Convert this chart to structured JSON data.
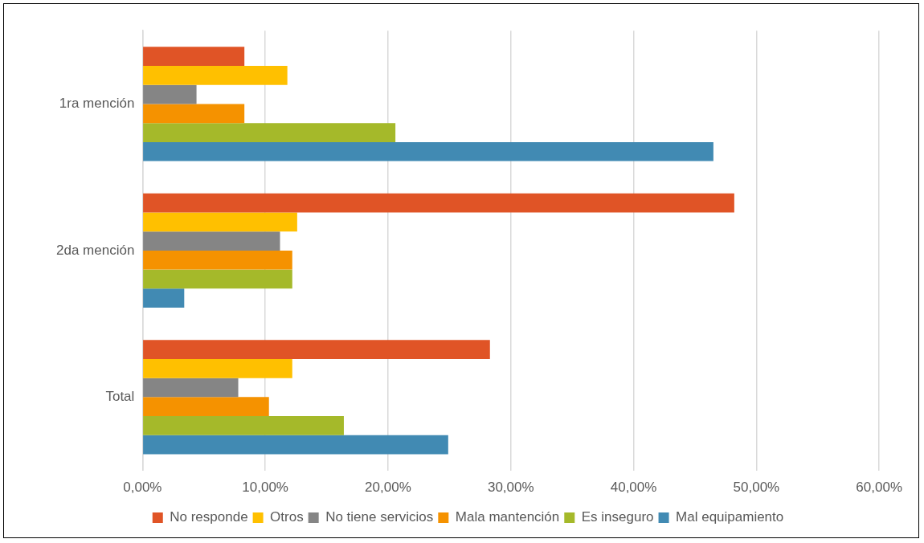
{
  "chart_data": {
    "type": "bar",
    "orientation": "horizontal",
    "categories": [
      "1ra mención",
      "2da mención",
      "Total"
    ],
    "series": [
      {
        "name": "No responde",
        "color": "#e05426",
        "values": [
          8.3,
          48.2,
          28.3
        ]
      },
      {
        "name": "Otros",
        "color": "#ffc000",
        "values": [
          11.8,
          12.6,
          12.2
        ]
      },
      {
        "name": "No tiene servicios",
        "color": "#858585",
        "values": [
          4.4,
          11.2,
          7.8
        ]
      },
      {
        "name": "Mala mantención",
        "color": "#f59200",
        "values": [
          8.3,
          12.2,
          10.3
        ]
      },
      {
        "name": "Es inseguro",
        "color": "#a5b92a",
        "values": [
          20.6,
          12.2,
          16.4
        ]
      },
      {
        "name": "Mal equipamiento",
        "color": "#418ab3",
        "values": [
          46.5,
          3.4,
          24.9
        ]
      }
    ],
    "xlim": [
      0,
      60
    ],
    "xticks": [
      {
        "value": 0,
        "label": "0,00%"
      },
      {
        "value": 10,
        "label": "10,00%"
      },
      {
        "value": 20,
        "label": "20,00%"
      },
      {
        "value": 30,
        "label": "30,00%"
      },
      {
        "value": 40,
        "label": "40,00%"
      },
      {
        "value": 50,
        "label": "50,00%"
      },
      {
        "value": 60,
        "label": "60,00%"
      }
    ],
    "grid": "x",
    "legend": "bottom"
  }
}
